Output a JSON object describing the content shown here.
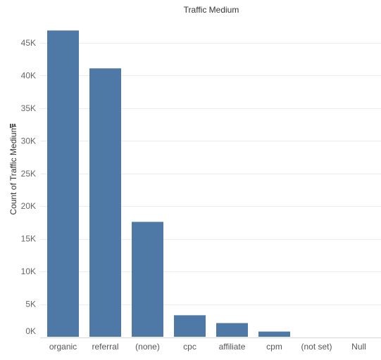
{
  "chart_data": {
    "type": "bar",
    "title": "Traffic Medium",
    "xlabel": "",
    "ylabel": "Count of Traffic Medium",
    "categories": [
      "organic",
      "referral",
      "(none)",
      "cpc",
      "affiliate",
      "cpm",
      "(not set)",
      "Null"
    ],
    "values": [
      46900,
      41100,
      17600,
      3300,
      2100,
      800,
      0,
      0
    ],
    "ylim": [
      0,
      48000
    ],
    "yticks": [
      0,
      5000,
      10000,
      15000,
      20000,
      25000,
      30000,
      35000,
      40000,
      45000
    ],
    "ytick_labels": [
      "0K",
      "5K",
      "10K",
      "15K",
      "20K",
      "25K",
      "30K",
      "35K",
      "40K",
      "45K"
    ],
    "grid": true,
    "bar_color": "#4e79a7",
    "sort_icon": "sort-descending-icon"
  }
}
